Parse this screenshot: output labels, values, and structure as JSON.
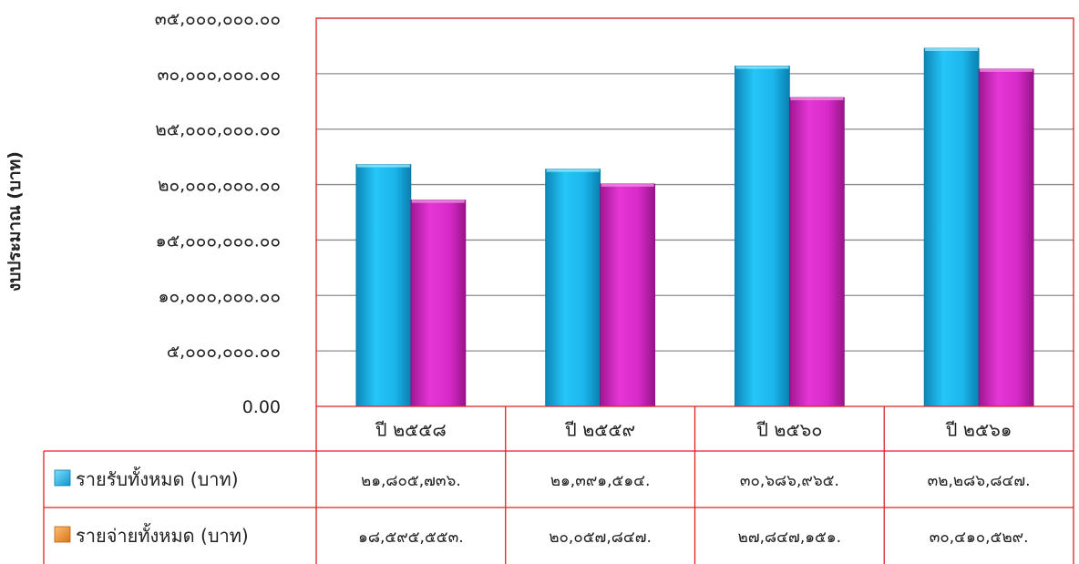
{
  "chart_data": {
    "type": "bar",
    "ylabel": "งบประมาณ (บาท)",
    "xlabel": "",
    "title": "",
    "ylim": [
      0,
      35000000
    ],
    "y_ticks": [
      0,
      5000000,
      10000000,
      15000000,
      20000000,
      25000000,
      30000000,
      35000000
    ],
    "y_tick_labels": [
      "0.00",
      "๕,๐๐๐,๐๐๐.๐๐",
      "๑๐,๐๐๐,๐๐๐.๐๐",
      "๑๕,๐๐๐,๐๐๐.๐๐",
      "๒๐,๐๐๐,๐๐๐.๐๐",
      "๒๕,๐๐๐,๐๐๐.๐๐",
      "๓๐,๐๐๐,๐๐๐.๐๐",
      "๓๕,๐๐๐,๐๐๐.๐๐"
    ],
    "categories": [
      "ปี ๒๕๕๘",
      "ปี ๒๕๕๙",
      "ปี ๒๕๖๐",
      "ปี ๒๕๖๑"
    ],
    "grid": true,
    "legend": "data-table",
    "series": [
      {
        "name": "รายรับทั้งหมด (บาท)",
        "color": "#19b4ec",
        "values": [
          21805736,
          21391514,
          30686965,
          32286847
        ],
        "table_labels": [
          "๒๑,๘๐๕,๗๓๖.",
          "๒๑,๓๙๑,๕๑๔.",
          "๓๐,๖๘๖,๙๖๕.",
          "๓๒,๒๘๖,๘๔๗."
        ]
      },
      {
        "name": "รายจ่ายทั้งหมด (บาท)",
        "color": "#d62ac8",
        "legend_color": "#e88a2a",
        "values": [
          18595553,
          20057847,
          27847151,
          30410529
        ],
        "table_labels": [
          "๑๘,๕๙๕,๕๕๓.",
          "๒๐,๐๕๗,๘๔๗.",
          "๒๗,๘๔๗,๑๕๑.",
          "๓๐,๔๑๐,๕๒๙."
        ]
      }
    ]
  }
}
